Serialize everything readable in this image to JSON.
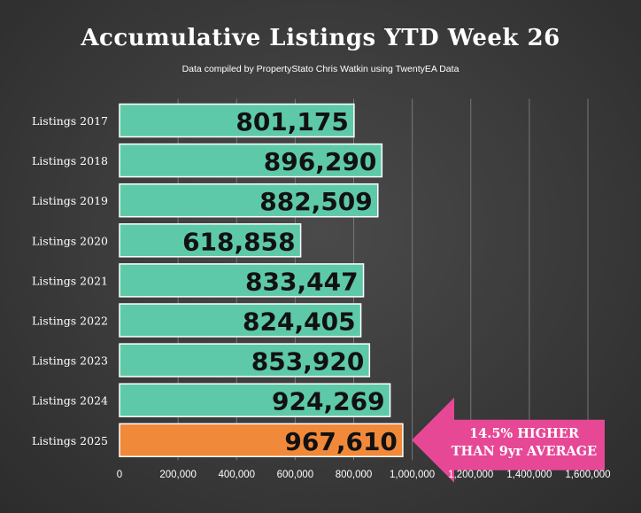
{
  "title": "Accumulative Listings YTD Week 26",
  "subtitle": "Data compiled by PropertyStato Chris Watkin using TwentyEA Data",
  "annotation": {
    "line1": "14.5% HIGHER",
    "line2": "THAN 9yr AVERAGE",
    "color": "#e64896"
  },
  "colors": {
    "bar": "#5ec9a8",
    "highlight": "#f0893a",
    "grid": "#777777"
  },
  "chart_data": {
    "type": "bar",
    "orientation": "horizontal",
    "categories": [
      "Listings 2017",
      "Listings 2018",
      "Listings 2019",
      "Listings 2020",
      "Listings 2021",
      "Listings 2022",
      "Listings 2023",
      "Listings 2024",
      "Listings 2025"
    ],
    "values": [
      801175,
      896290,
      882509,
      618858,
      833447,
      824405,
      853920,
      924269,
      967610
    ],
    "value_labels": [
      "801,175",
      "896,290",
      "882,509",
      "618,858",
      "833,447",
      "824,405",
      "853,920",
      "924,269",
      "967,610"
    ],
    "highlight_index": 8,
    "xlim": [
      0,
      1600000
    ],
    "xticks": [
      0,
      200000,
      400000,
      600000,
      800000,
      1000000,
      1200000,
      1400000,
      1600000
    ],
    "xtick_labels": [
      "0",
      "200,000",
      "400,000",
      "600,000",
      "800,000",
      "1,000,000",
      "1,200,000",
      "1,400,000",
      "1,600,000"
    ],
    "grid": true
  }
}
